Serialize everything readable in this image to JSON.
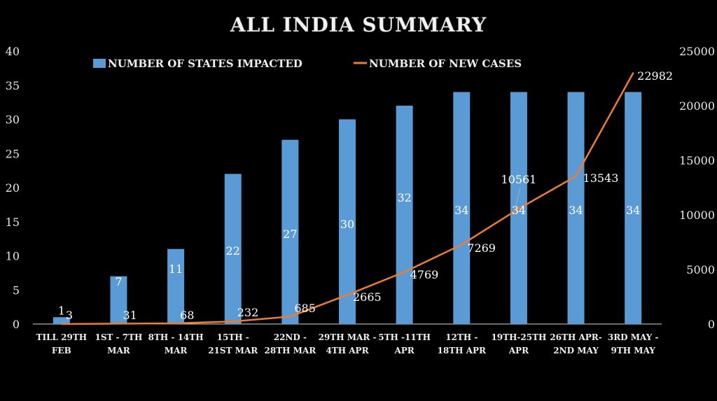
{
  "chart_data": {
    "type": "bar+line",
    "title": "ALL INDIA  SUMMARY",
    "categories": [
      [
        "TILL 29TH",
        "FEB"
      ],
      [
        "1ST - 7TH",
        "MAR"
      ],
      [
        "8TH - 14TH",
        "MAR"
      ],
      [
        "15TH -",
        "21ST MAR"
      ],
      [
        "22ND -",
        "28TH MAR"
      ],
      [
        "29TH MAR -",
        "4TH APR"
      ],
      [
        "5TH -11TH",
        "APR"
      ],
      [
        "12TH -",
        "18TH APR"
      ],
      [
        "19TH-25TH",
        "APR"
      ],
      [
        "26TH APR-",
        "2ND MAY"
      ],
      [
        "3RD MAY -",
        "9TH MAY"
      ]
    ],
    "series": [
      {
        "name": "NUMBER OF STATES IMPACTED",
        "type": "bar",
        "axis": "left",
        "color": "#5B9BD5",
        "values": [
          1,
          7,
          11,
          22,
          27,
          30,
          32,
          34,
          34,
          34,
          34
        ]
      },
      {
        "name": "NUMBER OF NEW CASES",
        "type": "line",
        "axis": "right",
        "color": "#ED7D31",
        "values": [
          3,
          31,
          68,
          232,
          685,
          2665,
          4769,
          7269,
          10561,
          13543,
          22982
        ]
      }
    ],
    "left_axis": {
      "ylim": [
        0,
        40
      ],
      "ticks": [
        0,
        5,
        10,
        15,
        20,
        25,
        30,
        35,
        40
      ]
    },
    "right_axis": {
      "ylim": [
        0,
        25000
      ],
      "ticks": [
        0,
        5000,
        10000,
        15000,
        20000,
        25000
      ]
    },
    "legend_position": "top",
    "grid": false,
    "xlabel": "",
    "ylabel": ""
  }
}
